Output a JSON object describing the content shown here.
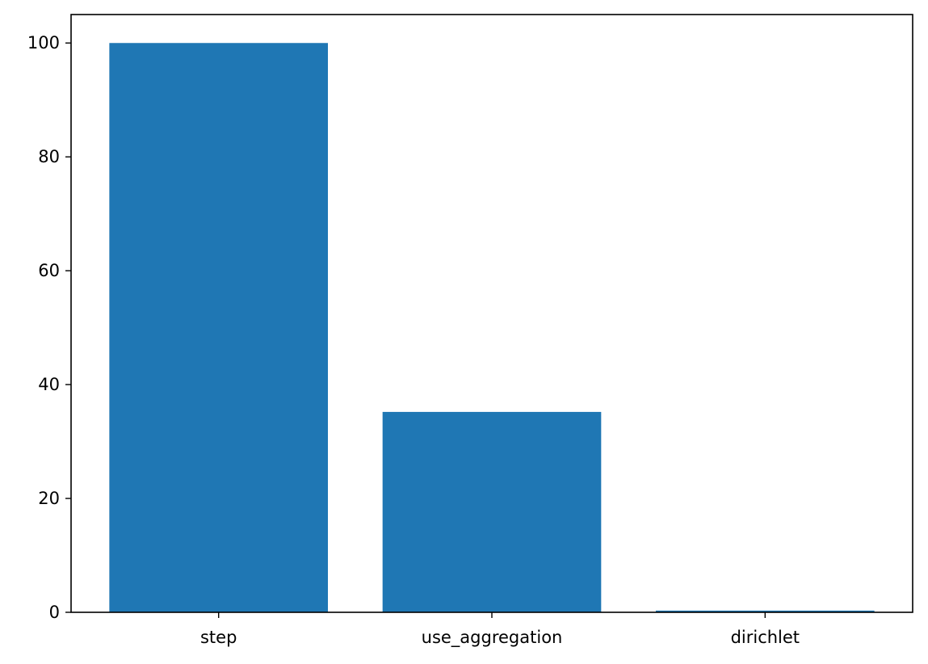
{
  "chart_data": {
    "type": "bar",
    "title": "",
    "xlabel": "",
    "ylabel": "",
    "categories": [
      "step",
      "use_aggregation",
      "dirichlet"
    ],
    "values": [
      100,
      35.2,
      0.3
    ],
    "ylim": [
      0,
      105
    ],
    "yticks": [
      0,
      20,
      40,
      60,
      80,
      100
    ],
    "bar_color": "#1f77b4",
    "grid": false,
    "legend": "none"
  }
}
